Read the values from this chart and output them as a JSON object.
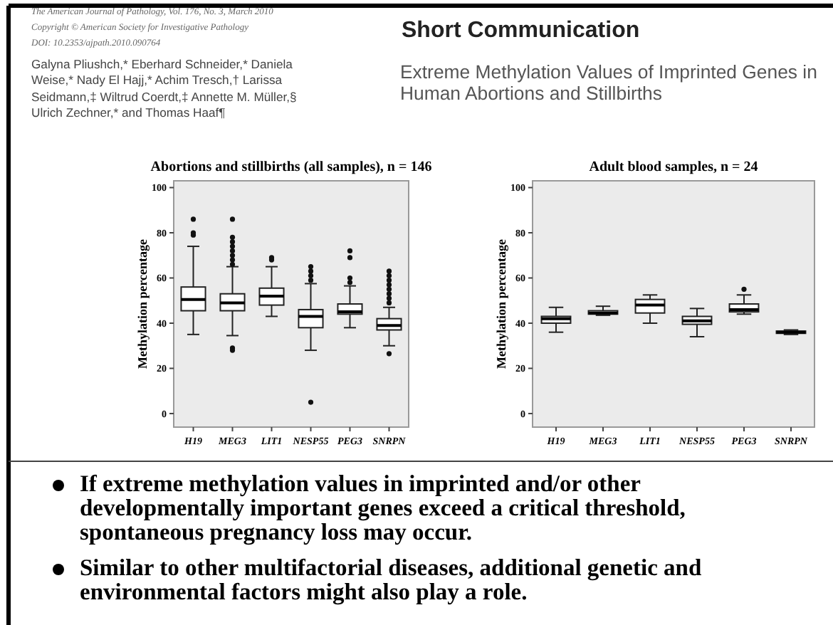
{
  "chart_data": [
    {
      "type": "box",
      "title": "Abortions and stillbirths (all samples),  n = 146",
      "ylabel": "Methylation percentage",
      "categories": [
        "H19",
        "MEG3",
        "LIT1",
        "NESP55",
        "PEG3",
        "SNRPN"
      ],
      "ylim": [
        -6,
        103
      ],
      "yticks": [
        0,
        20,
        40,
        60,
        80,
        100
      ],
      "boxes": [
        {
          "low": 35,
          "q1": 45.5,
          "median": 50.5,
          "q3": 56,
          "high": 74,
          "outliers": [
            79,
            80,
            86
          ]
        },
        {
          "low": 34.5,
          "q1": 45.5,
          "median": 49,
          "q3": 53,
          "high": 65,
          "outliers": [
            66,
            68,
            70,
            72,
            74,
            76,
            78,
            86,
            29,
            28
          ]
        },
        {
          "low": 43,
          "q1": 48,
          "median": 52,
          "q3": 55.5,
          "high": 65,
          "outliers": [
            68,
            69
          ]
        },
        {
          "low": 28,
          "q1": 38,
          "median": 43,
          "q3": 46,
          "high": 57.5,
          "outliers": [
            59,
            61,
            63,
            65,
            5
          ]
        },
        {
          "low": 38,
          "q1": 44,
          "median": 45,
          "q3": 48.5,
          "high": 56.5,
          "outliers": [
            58,
            60,
            69,
            72
          ]
        },
        {
          "low": 30,
          "q1": 37,
          "median": 39,
          "q3": 42,
          "high": 47,
          "outliers": [
            49,
            51,
            53,
            55,
            57,
            59,
            61,
            63,
            26.5
          ]
        }
      ],
      "annotations": [
        "The American Journal of Pathology, Vol. 176, No. 3, March 2010",
        "Copyright © American Society for Investigative Pathology",
        "DOI: 10.2353/ajpath.2010.090764",
        "Short Communication",
        "Extreme Methylation Values of Imprinted Genes in Human Abortions and Stillbirths",
        "Galyna Pliushch,* Eberhard Schneider,* Daniela Weise,* Nady El Hajj,* Achim Tresch,† Larissa Seidmann,‡ Wiltrud Coerdt,‡ Annette M. Müller,§ Ulrich Zechner,* and Thomas Haaf¶",
        "If extreme methylation values in imprinted and/or other developmentally important genes exceed a critical threshold, spontaneous pregnancy loss may occur.",
        "Similar to other multifactorial diseases, additional genetic and environmental factors might also play a role."
      ]
    },
    {
      "type": "box",
      "title": "Adult blood samples,  n = 24",
      "ylabel": "Methylation percentage",
      "categories": [
        "H19",
        "MEG3",
        "LIT1",
        "NESP55",
        "PEG3",
        "SNRPN"
      ],
      "ylim": [
        -6,
        103
      ],
      "yticks": [
        0,
        20,
        40,
        60,
        80,
        100
      ],
      "boxes": [
        {
          "low": 36,
          "q1": 40,
          "median": 42,
          "q3": 43,
          "high": 47
        },
        {
          "low": 43.5,
          "q1": 44,
          "median": 44.5,
          "q3": 45.5,
          "high": 47.5
        },
        {
          "low": 40,
          "q1": 44.5,
          "median": 48,
          "q3": 50.5,
          "high": 52.5
        },
        {
          "low": 34,
          "q1": 39.5,
          "median": 41,
          "q3": 43,
          "high": 46.5
        },
        {
          "low": 44,
          "q1": 45,
          "median": 46,
          "q3": 48.5,
          "high": 52.5,
          "outliers": [
            55
          ]
        },
        {
          "low": 35,
          "q1": 35.5,
          "median": 36,
          "q3": 36.5,
          "high": 37
        }
      ]
    }
  ]
}
